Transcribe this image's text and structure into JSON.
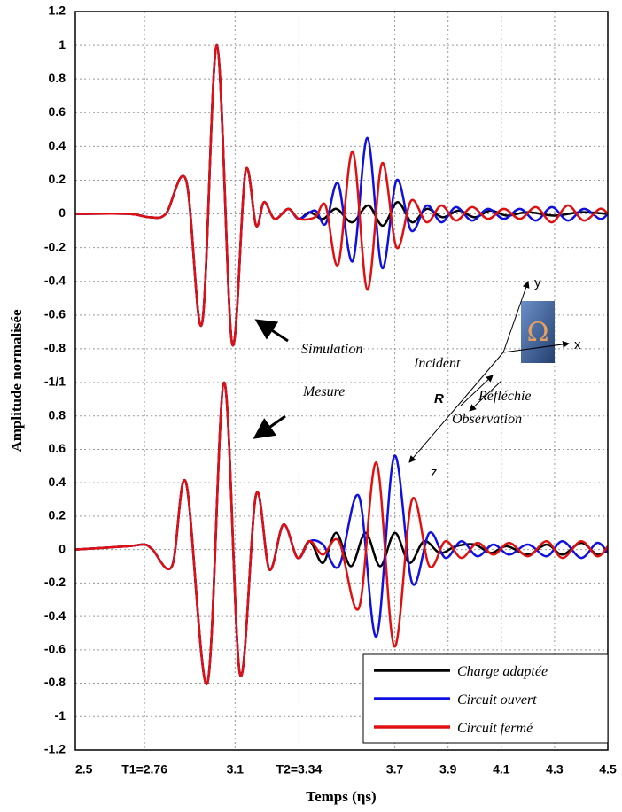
{
  "chart_data": [
    {
      "type": "line",
      "ylabel": "Amplitude normalisée",
      "xlim": [
        2.5,
        4.5
      ],
      "ylim": [
        -1,
        1.2
      ],
      "yticks": [
        1.2,
        1,
        0.8,
        0.6,
        0.4,
        0.2,
        0,
        -0.2,
        -0.4,
        -0.6,
        -0.8,
        {
          "value": -1,
          "label": "-1/1"
        }
      ],
      "grid": true,
      "annotations": [
        "Simulation",
        "Mesure",
        "Incident",
        "Réfléchie",
        "Observation",
        "R",
        "x",
        "y",
        "z"
      ],
      "series": [
        {
          "color": "#000000",
          "x": [
            2.5,
            2.7,
            2.78,
            2.84,
            2.916,
            2.976,
            3.032,
            3.089,
            3.139,
            3.179,
            3.209,
            3.249,
            3.3,
            3.34,
            3.38,
            3.43,
            3.48,
            3.54,
            3.6,
            3.655,
            3.71,
            3.765,
            3.82,
            3.88,
            3.94,
            4.0,
            4.06,
            4.12,
            4.2,
            4.3,
            4.4,
            4.5
          ],
          "values": [
            0,
            0,
            -0.02,
            0,
            0.2,
            -0.65,
            1,
            -0.77,
            0.25,
            -0.07,
            0.07,
            -0.03,
            0.03,
            -0.03,
            0.01,
            -0.03,
            0.03,
            -0.05,
            0.05,
            -0.07,
            0.07,
            -0.05,
            0.03,
            -0.02,
            0.02,
            -0.02,
            0.02,
            -0.01,
            0.01,
            -0.01,
            0.01,
            0
          ]
        },
        {
          "color": "#1010e0",
          "x": [
            2.5,
            2.7,
            2.78,
            2.84,
            2.916,
            2.976,
            3.032,
            3.089,
            3.139,
            3.179,
            3.209,
            3.249,
            3.3,
            3.34,
            3.4,
            3.44,
            3.487,
            3.542,
            3.597,
            3.652,
            3.707,
            3.762,
            3.82,
            3.875,
            3.93,
            3.99,
            4.05,
            4.11,
            4.17,
            4.23,
            4.29,
            4.35,
            4.41,
            4.47,
            4.5
          ],
          "values": [
            0,
            0,
            -0.02,
            0,
            0.2,
            -0.65,
            1,
            -0.77,
            0.25,
            -0.07,
            0.07,
            -0.03,
            0.03,
            -0.03,
            0.02,
            -0.06,
            0.18,
            -0.28,
            0.45,
            -0.32,
            0.2,
            -0.1,
            0.05,
            -0.05,
            0.04,
            -0.04,
            0.03,
            -0.03,
            0.03,
            -0.04,
            0.04,
            -0.04,
            0.03,
            -0.03,
            0
          ]
        },
        {
          "color": "#e01010",
          "x": [
            2.5,
            2.7,
            2.78,
            2.84,
            2.916,
            2.976,
            3.032,
            3.089,
            3.139,
            3.179,
            3.209,
            3.249,
            3.3,
            3.34,
            3.4,
            3.44,
            3.487,
            3.542,
            3.597,
            3.652,
            3.707,
            3.762,
            3.82,
            3.875,
            3.93,
            3.99,
            4.05,
            4.11,
            4.17,
            4.23,
            4.29,
            4.35,
            4.41,
            4.47,
            4.5
          ],
          "values": [
            0,
            0,
            -0.02,
            0,
            0.2,
            -0.65,
            1,
            -0.77,
            0.25,
            -0.07,
            0.07,
            -0.03,
            0.03,
            -0.03,
            -0.02,
            0.05,
            -0.3,
            0.37,
            -0.45,
            0.3,
            -0.2,
            0.08,
            -0.05,
            0.05,
            -0.04,
            0.04,
            -0.03,
            0.03,
            -0.03,
            0.04,
            -0.05,
            0.05,
            -0.04,
            0.03,
            0
          ]
        }
      ]
    },
    {
      "type": "line",
      "xlabel": "Temps (ηs)",
      "xlim": [
        2.5,
        4.5
      ],
      "ylim": [
        -1.2,
        1
      ],
      "xticks": [
        2.5,
        {
          "value": 2.76,
          "label": "T1=2.76"
        },
        3.1,
        {
          "value": 3.34,
          "label": "T2=3.34"
        },
        3.7,
        3.9,
        4.1,
        4.3,
        4.5
      ],
      "yticks": [
        0.8,
        0.6,
        0.4,
        0.2,
        0,
        -0.2,
        -0.4,
        -0.6,
        -0.8,
        -1,
        -1.2
      ],
      "grid": true,
      "legend": "lower right",
      "series": [
        {
          "name": "Charge adaptée",
          "color": "#000000",
          "x": [
            2.5,
            2.7,
            2.76,
            2.79,
            2.863,
            2.916,
            2.996,
            3.059,
            3.119,
            3.179,
            3.229,
            3.282,
            3.335,
            3.38,
            3.43,
            3.48,
            3.535,
            3.59,
            3.645,
            3.7,
            3.755,
            3.81,
            3.87,
            3.93,
            4.0,
            4.06,
            4.12,
            4.2,
            4.27,
            4.33,
            4.4,
            4.46,
            4.5
          ],
          "values": [
            0,
            0.02,
            0.03,
            0,
            -0.1,
            0.4,
            -0.8,
            1,
            -0.75,
            0.33,
            -0.12,
            0.15,
            -0.05,
            0.05,
            -0.08,
            0.1,
            -0.1,
            0.1,
            -0.1,
            0.1,
            -0.08,
            0.05,
            -0.02,
            0.02,
            0.03,
            -0.02,
            0.02,
            -0.03,
            0.03,
            -0.03,
            0.04,
            -0.03,
            0
          ]
        },
        {
          "name": "Circuit ouvert",
          "color": "#1010e0",
          "x": [
            2.5,
            2.7,
            2.76,
            2.79,
            2.863,
            2.916,
            2.996,
            3.059,
            3.119,
            3.179,
            3.229,
            3.282,
            3.335,
            3.38,
            3.43,
            3.49,
            3.565,
            3.631,
            3.698,
            3.765,
            3.83,
            3.89,
            3.95,
            4.01,
            4.07,
            4.13,
            4.2,
            4.27,
            4.33,
            4.4,
            4.46,
            4.5
          ],
          "values": [
            0,
            0.02,
            0.03,
            0,
            -0.1,
            0.4,
            -0.8,
            1,
            -0.75,
            0.33,
            -0.12,
            0.15,
            -0.05,
            0.05,
            0.03,
            -0.1,
            0.32,
            -0.52,
            0.56,
            -0.2,
            0.1,
            -0.05,
            0.05,
            -0.04,
            0.03,
            -0.03,
            0.03,
            -0.04,
            0.05,
            -0.05,
            0.04,
            -0.02
          ]
        },
        {
          "name": "Circuit fermé",
          "color": "#e01010",
          "x": [
            2.5,
            2.7,
            2.76,
            2.79,
            2.863,
            2.916,
            2.996,
            3.059,
            3.119,
            3.179,
            3.229,
            3.282,
            3.335,
            3.38,
            3.43,
            3.49,
            3.565,
            3.631,
            3.698,
            3.765,
            3.83,
            3.89,
            3.95,
            4.01,
            4.07,
            4.13,
            4.2,
            4.27,
            4.33,
            4.4,
            4.46,
            4.5
          ],
          "values": [
            0,
            0.02,
            0.03,
            0,
            -0.1,
            0.4,
            -0.8,
            1,
            -0.75,
            0.33,
            -0.12,
            0.15,
            -0.05,
            0.05,
            -0.03,
            0.05,
            -0.35,
            0.52,
            -0.58,
            0.3,
            -0.1,
            0.05,
            -0.05,
            0.04,
            -0.03,
            0.04,
            -0.04,
            0.05,
            -0.05,
            0.05,
            -0.04,
            0.02
          ]
        }
      ]
    }
  ]
}
